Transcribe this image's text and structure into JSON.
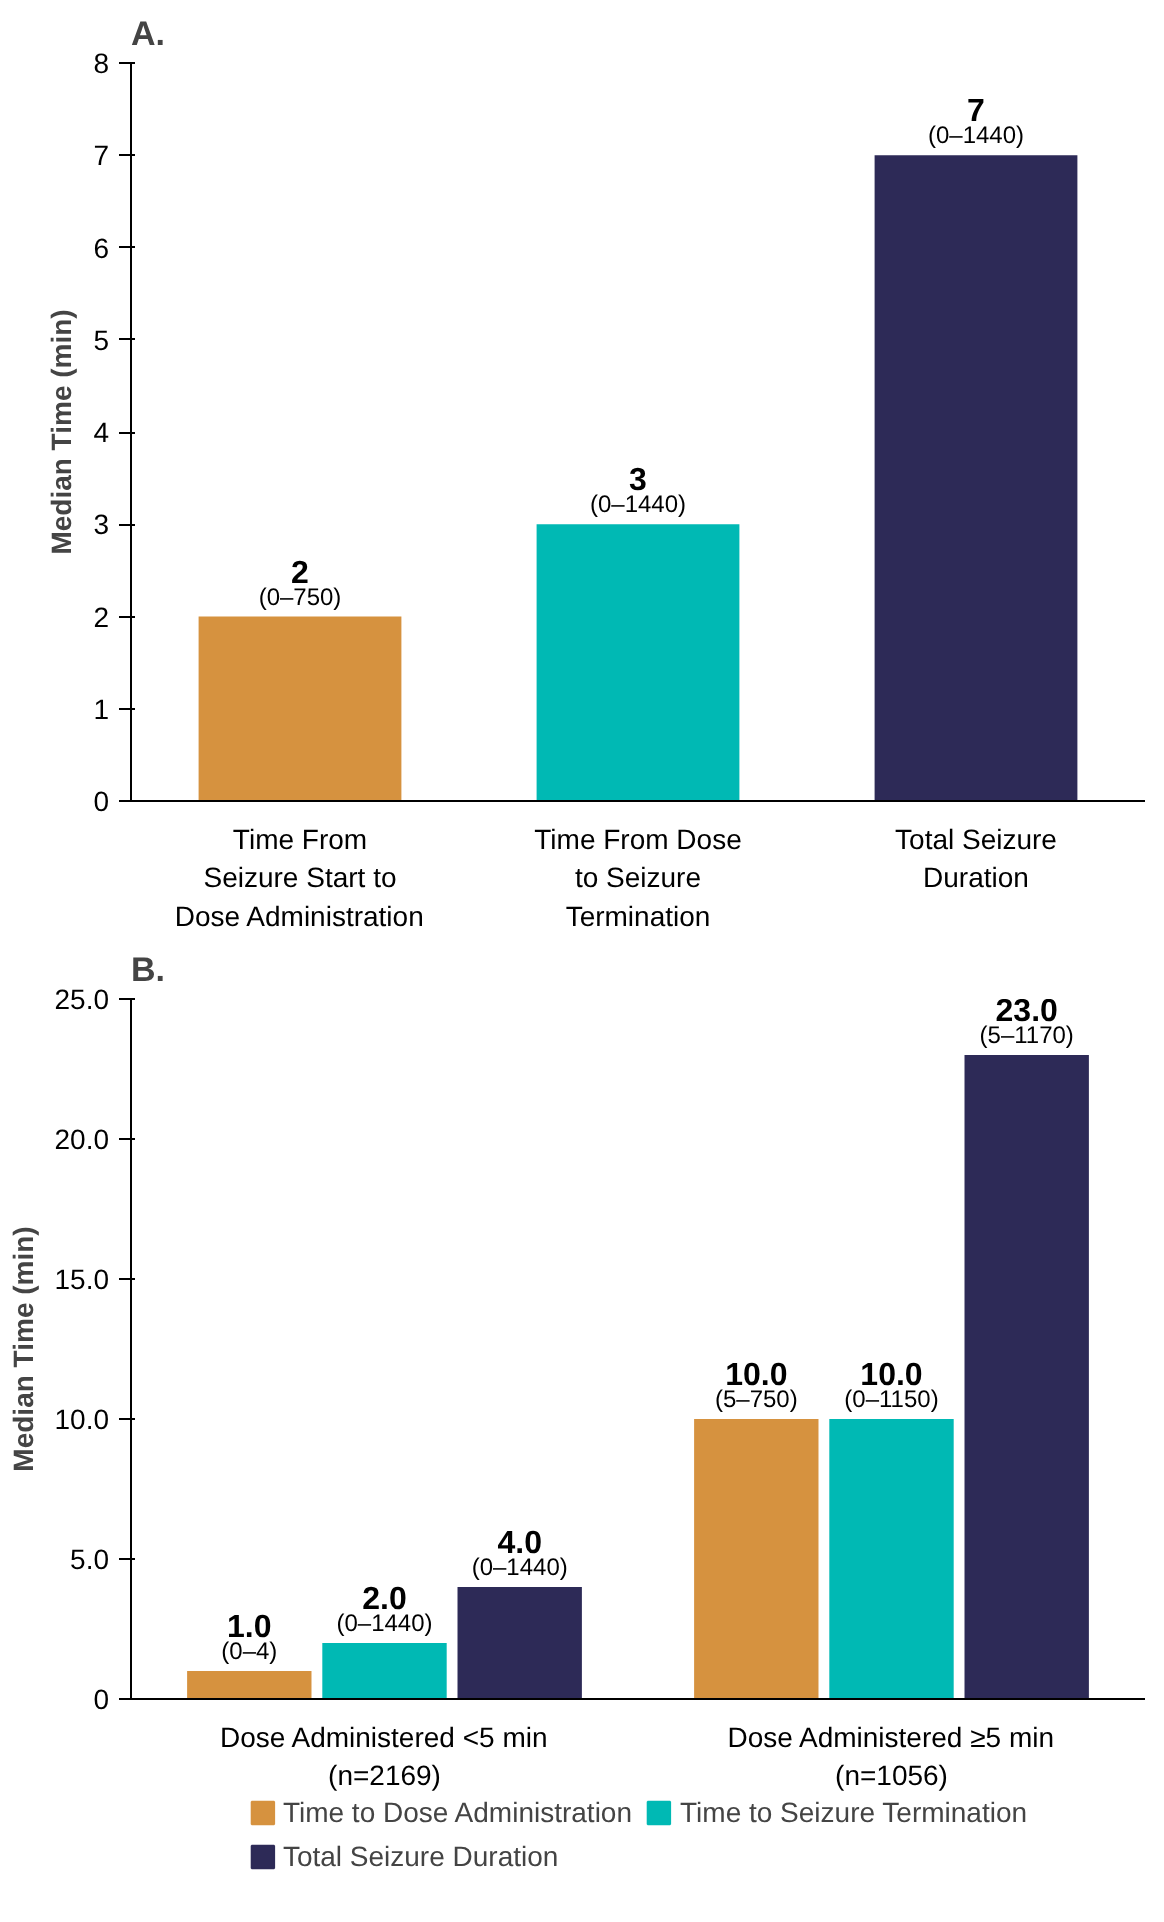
{
  "chart_data": [
    {
      "type": "bar",
      "title": "A.",
      "ylabel": "Median Time (min)",
      "categories": [
        "Time From\nSeizure Start to\nDose Administration",
        "Time From Dose\nto Seizure\nTermination",
        "Total Seizure\nDuration"
      ],
      "values": [
        2,
        3,
        7
      ],
      "colors": [
        "#d6923f",
        "#00b9b4",
        "#2d2a57"
      ],
      "value_labels": [
        "2",
        "3",
        "7"
      ],
      "annotations": [
        {
          "text": "(0–750)",
          "x": "Time From\nSeizure Start to\nDose Administration",
          "y": 2
        },
        {
          "text": "(0–1440)",
          "x": "Time From Dose\nto Seizure\nTermination",
          "y": 3
        },
        {
          "text": "(0–1440)",
          "x": "Total Seizure\nDuration",
          "y": 7
        }
      ],
      "ylim": [
        0,
        8
      ],
      "yticks": [
        0,
        1,
        2,
        3,
        4,
        5,
        6,
        7,
        8
      ],
      "grid": false,
      "legend": false
    },
    {
      "type": "bar",
      "title": "B.",
      "ylabel": "Median Time (min)",
      "categories": [
        "Dose Administered <5 min\n(n=2169)",
        "Dose Administered ≥5 min\n(n=1056)"
      ],
      "series": [
        {
          "name": "Time to Dose Administration",
          "color": "#d6923f",
          "values": [
            1.0,
            10.0
          ],
          "value_labels": [
            "1.0",
            "10.0"
          ]
        },
        {
          "name": "Time to Seizure Termination",
          "color": "#00b9b4",
          "values": [
            2.0,
            10.0
          ],
          "value_labels": [
            "2.0",
            "10.0"
          ]
        },
        {
          "name": "Total Seizure Duration",
          "color": "#2d2a57",
          "values": [
            4.0,
            23.0
          ],
          "value_labels": [
            "4.0",
            "23.0"
          ]
        }
      ],
      "annotations": [
        "(0–4)",
        "(0–1440)",
        "(0–1440)",
        "(5–750)",
        "(0–1150)",
        "(5–1170)"
      ],
      "ylim": [
        0,
        25
      ],
      "yticks": [
        0,
        {
          "value": 5,
          "label": "5.0"
        },
        {
          "value": 10,
          "label": "10.0"
        },
        {
          "value": 15,
          "label": "15.0"
        },
        {
          "value": 20,
          "label": "20.0"
        },
        {
          "value": 25,
          "label": "25.0"
        }
      ],
      "grid": false,
      "legend": "bottom"
    }
  ]
}
